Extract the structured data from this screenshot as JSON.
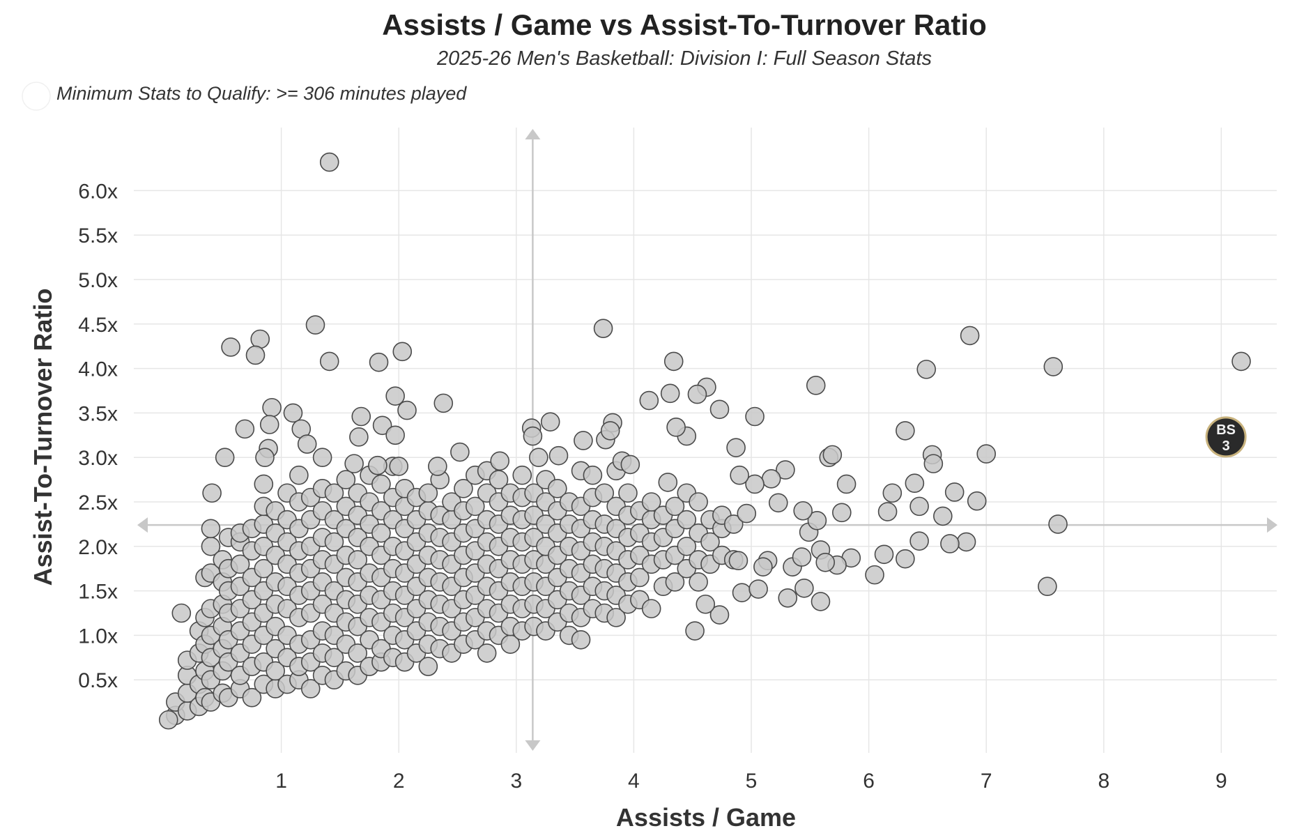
{
  "chart_data": {
    "type": "scatter",
    "title": "Assists / Game vs Assist-To-Turnover Ratio",
    "subtitle": "2025-26 Men's Basketball: Division I: Full Season Stats",
    "note": "Minimum Stats to Qualify: >= 306 minutes played",
    "xlabel": "Assists / Game",
    "ylabel": "Assist-To-Turnover Ratio",
    "xlim": [
      0,
      9.5
    ],
    "ylim": [
      -0.2,
      6.6
    ],
    "x_ticks": [
      {
        "v": 1,
        "label": "1"
      },
      {
        "v": 2,
        "label": "2"
      },
      {
        "v": 3,
        "label": "3"
      },
      {
        "v": 4,
        "label": "4"
      },
      {
        "v": 5,
        "label": "5"
      },
      {
        "v": 6,
        "label": "6"
      },
      {
        "v": 7,
        "label": "7"
      },
      {
        "v": 8,
        "label": "8"
      },
      {
        "v": 9,
        "label": "9"
      }
    ],
    "y_ticks": [
      {
        "v": 0.5,
        "label": "0.5x"
      },
      {
        "v": 1.0,
        "label": "1.0x"
      },
      {
        "v": 1.5,
        "label": "1.5x"
      },
      {
        "v": 2.0,
        "label": "2.0x"
      },
      {
        "v": 2.5,
        "label": "2.5x"
      },
      {
        "v": 3.0,
        "label": "3.0x"
      },
      {
        "v": 3.5,
        "label": "3.5x"
      },
      {
        "v": 4.0,
        "label": "4.0x"
      },
      {
        "v": 4.5,
        "label": "4.5x"
      },
      {
        "v": 5.0,
        "label": "5.0x"
      },
      {
        "v": 5.5,
        "label": "5.5x"
      },
      {
        "v": 6.0,
        "label": "6.0x"
      }
    ],
    "grid": true,
    "crosshair": {
      "x": 3.14,
      "y": 2.24
    },
    "highlight": {
      "x": 9.04,
      "y": 3.23,
      "label_line1": "BS",
      "label_line2": "3",
      "fill": "#2a2a2a",
      "stroke": "#c9b37e"
    },
    "cloud_columns": [
      {
        "x": 0.1,
        "y": [
          0.1,
          0.25
        ]
      },
      {
        "x": 0.2,
        "y": [
          0.15,
          0.35,
          0.55,
          0.72
        ]
      },
      {
        "x": 0.3,
        "y": [
          0.2,
          0.45,
          0.8,
          1.05
        ]
      },
      {
        "x": 0.35,
        "y": [
          0.3,
          0.6,
          0.9,
          1.2,
          1.65
        ]
      },
      {
        "x": 0.4,
        "y": [
          0.25,
          0.5,
          0.75,
          1.0,
          1.3,
          1.7,
          2.0,
          2.2
        ]
      },
      {
        "x": 0.5,
        "y": [
          0.35,
          0.6,
          0.85,
          1.1,
          1.35,
          1.6,
          1.85
        ]
      },
      {
        "x": 0.55,
        "y": [
          0.3,
          0.7,
          0.95,
          1.25,
          1.5,
          1.75,
          2.1
        ]
      },
      {
        "x": 0.65,
        "y": [
          0.4,
          0.55,
          0.8,
          1.05,
          1.3,
          1.55,
          1.8,
          2.05,
          2.15
        ]
      },
      {
        "x": 0.75,
        "y": [
          0.3,
          0.65,
          0.9,
          1.15,
          1.4,
          1.65,
          1.95,
          2.2
        ]
      },
      {
        "x": 0.85,
        "y": [
          0.45,
          0.7,
          1.0,
          1.25,
          1.5,
          1.75,
          2.0,
          2.25,
          2.45,
          2.7
        ]
      },
      {
        "x": 0.95,
        "y": [
          0.4,
          0.6,
          0.85,
          1.1,
          1.35,
          1.6,
          1.9,
          2.15,
          2.4
        ]
      },
      {
        "x": 1.05,
        "y": [
          0.45,
          0.75,
          1.0,
          1.3,
          1.55,
          1.8,
          2.05,
          2.3,
          2.6
        ]
      },
      {
        "x": 1.15,
        "y": [
          0.5,
          0.65,
          0.9,
          1.2,
          1.45,
          1.7,
          1.95,
          2.2,
          2.5,
          2.8
        ]
      },
      {
        "x": 1.25,
        "y": [
          0.4,
          0.7,
          0.95,
          1.25,
          1.5,
          1.75,
          2.0,
          2.3,
          2.55
        ]
      },
      {
        "x": 1.35,
        "y": [
          0.55,
          0.8,
          1.05,
          1.35,
          1.6,
          1.85,
          2.1,
          2.4,
          2.65
        ]
      },
      {
        "x": 1.45,
        "y": [
          0.5,
          0.75,
          1.0,
          1.25,
          1.5,
          1.8,
          2.05,
          2.3,
          2.6
        ]
      },
      {
        "x": 1.55,
        "y": [
          0.6,
          0.9,
          1.15,
          1.4,
          1.65,
          1.9,
          2.2,
          2.45,
          2.75
        ]
      },
      {
        "x": 1.65,
        "y": [
          0.55,
          0.8,
          1.1,
          1.35,
          1.6,
          1.85,
          2.1,
          2.35,
          2.6
        ]
      },
      {
        "x": 1.75,
        "y": [
          0.65,
          0.95,
          1.2,
          1.45,
          1.7,
          2.0,
          2.25,
          2.5,
          2.8
        ]
      },
      {
        "x": 1.85,
        "y": [
          0.7,
          0.85,
          1.15,
          1.4,
          1.65,
          1.9,
          2.15,
          2.4,
          2.7
        ]
      },
      {
        "x": 1.95,
        "y": [
          0.75,
          1.0,
          1.25,
          1.5,
          1.75,
          2.0,
          2.3,
          2.55,
          2.9
        ]
      },
      {
        "x": 2.05,
        "y": [
          0.7,
          0.95,
          1.2,
          1.45,
          1.7,
          1.95,
          2.2,
          2.45,
          2.65
        ]
      },
      {
        "x": 2.15,
        "y": [
          0.8,
          1.05,
          1.3,
          1.55,
          1.8,
          2.05,
          2.3,
          2.55
        ]
      },
      {
        "x": 2.25,
        "y": [
          0.65,
          0.9,
          1.15,
          1.4,
          1.65,
          1.9,
          2.15,
          2.4,
          2.6
        ]
      },
      {
        "x": 2.35,
        "y": [
          0.85,
          1.1,
          1.35,
          1.6,
          1.85,
          2.1,
          2.35,
          2.75
        ]
      },
      {
        "x": 2.45,
        "y": [
          0.8,
          1.05,
          1.3,
          1.55,
          1.8,
          2.05,
          2.3,
          2.5
        ]
      },
      {
        "x": 2.55,
        "y": [
          0.9,
          1.15,
          1.4,
          1.65,
          1.9,
          2.15,
          2.4,
          2.65
        ]
      },
      {
        "x": 2.65,
        "y": [
          0.95,
          1.2,
          1.45,
          1.7,
          1.95,
          2.2,
          2.45,
          2.8
        ]
      },
      {
        "x": 2.75,
        "y": [
          0.8,
          1.05,
          1.3,
          1.55,
          1.8,
          2.05,
          2.3,
          2.6,
          2.85
        ]
      },
      {
        "x": 2.85,
        "y": [
          1.0,
          1.25,
          1.5,
          1.75,
          2.0,
          2.25,
          2.5,
          2.75
        ]
      },
      {
        "x": 2.95,
        "y": [
          0.9,
          1.1,
          1.35,
          1.6,
          1.85,
          2.1,
          2.35,
          2.6
        ]
      },
      {
        "x": 3.05,
        "y": [
          1.05,
          1.3,
          1.55,
          1.8,
          2.05,
          2.3,
          2.55,
          2.8
        ]
      },
      {
        "x": 3.15,
        "y": [
          1.1,
          1.35,
          1.6,
          1.85,
          2.1,
          2.35,
          2.6
        ]
      },
      {
        "x": 3.25,
        "y": [
          1.05,
          1.3,
          1.55,
          1.8,
          2.0,
          2.25,
          2.5,
          2.75
        ]
      },
      {
        "x": 3.35,
        "y": [
          1.15,
          1.4,
          1.65,
          1.9,
          2.15,
          2.4,
          2.65
        ]
      },
      {
        "x": 3.45,
        "y": [
          1.0,
          1.25,
          1.5,
          1.75,
          2.0,
          2.25,
          2.5
        ]
      },
      {
        "x": 3.55,
        "y": [
          0.95,
          1.2,
          1.45,
          1.7,
          1.95,
          2.2,
          2.45,
          2.85
        ]
      },
      {
        "x": 3.65,
        "y": [
          1.3,
          1.55,
          1.8,
          2.05,
          2.3,
          2.55,
          2.8
        ]
      },
      {
        "x": 3.75,
        "y": [
          1.25,
          1.5,
          1.75,
          2.0,
          2.25,
          2.6
        ]
      },
      {
        "x": 3.85,
        "y": [
          1.2,
          1.45,
          1.7,
          1.95,
          2.2,
          2.45,
          2.85
        ]
      },
      {
        "x": 3.95,
        "y": [
          1.35,
          1.6,
          1.85,
          2.1,
          2.35,
          2.6
        ]
      },
      {
        "x": 4.05,
        "y": [
          1.4,
          1.65,
          1.9,
          2.15,
          2.4
        ]
      },
      {
        "x": 4.15,
        "y": [
          1.3,
          1.8,
          2.05,
          2.3,
          2.5
        ]
      },
      {
        "x": 4.25,
        "y": [
          1.55,
          1.85,
          2.1,
          2.35
        ]
      },
      {
        "x": 4.35,
        "y": [
          1.6,
          1.9,
          2.2,
          2.45
        ]
      },
      {
        "x": 4.45,
        "y": [
          1.75,
          2.0,
          2.3,
          2.6
        ]
      },
      {
        "x": 4.55,
        "y": [
          1.6,
          1.85,
          2.15,
          2.5
        ]
      },
      {
        "x": 4.65,
        "y": [
          1.8,
          2.05,
          2.3
        ]
      },
      {
        "x": 4.75,
        "y": [
          1.9,
          2.2,
          2.35
        ]
      },
      {
        "x": 4.85,
        "y": [
          1.85,
          2.25
        ]
      }
    ],
    "points": [
      [
        1.41,
        6.32
      ],
      [
        1.29,
        4.49
      ],
      [
        0.82,
        4.33
      ],
      [
        0.57,
        4.24
      ],
      [
        0.78,
        4.15
      ],
      [
        1.41,
        4.08
      ],
      [
        1.83,
        4.07
      ],
      [
        2.03,
        4.19
      ],
      [
        3.74,
        4.45
      ],
      [
        4.34,
        4.08
      ],
      [
        6.86,
        4.37
      ],
      [
        6.49,
        3.99
      ],
      [
        7.57,
        4.02
      ],
      [
        9.17,
        4.08
      ],
      [
        5.55,
        3.81
      ],
      [
        4.62,
        3.79
      ],
      [
        4.13,
        3.64
      ],
      [
        4.73,
        3.54
      ],
      [
        5.03,
        3.46
      ],
      [
        6.31,
        3.3
      ],
      [
        6.54,
        3.03
      ],
      [
        6.55,
        2.93
      ],
      [
        7.0,
        3.04
      ],
      [
        5.66,
        3.0
      ],
      [
        5.69,
        3.03
      ],
      [
        6.92,
        2.51
      ],
      [
        6.73,
        2.61
      ],
      [
        6.39,
        2.71
      ],
      [
        6.2,
        2.6
      ],
      [
        6.43,
        2.45
      ],
      [
        6.16,
        2.39
      ],
      [
        6.63,
        2.34
      ],
      [
        5.81,
        2.7
      ],
      [
        5.77,
        2.38
      ],
      [
        7.61,
        2.25
      ],
      [
        6.43,
        2.06
      ],
      [
        6.83,
        2.05
      ],
      [
        6.69,
        2.03
      ],
      [
        6.13,
        1.91
      ],
      [
        6.31,
        1.86
      ],
      [
        6.05,
        1.68
      ],
      [
        7.52,
        1.55
      ],
      [
        5.59,
        1.38
      ],
      [
        5.31,
        1.42
      ],
      [
        5.45,
        1.53
      ],
      [
        4.52,
        1.05
      ],
      [
        4.73,
        1.23
      ],
      [
        4.61,
        1.35
      ],
      [
        4.92,
        1.48
      ],
      [
        5.06,
        1.52
      ],
      [
        4.87,
        3.11
      ],
      [
        5.29,
        2.86
      ],
      [
        4.45,
        3.24
      ],
      [
        4.36,
        3.34
      ],
      [
        4.31,
        3.72
      ],
      [
        4.54,
        3.71
      ],
      [
        4.29,
        2.72
      ],
      [
        5.85,
        1.87
      ],
      [
        5.73,
        1.79
      ],
      [
        5.59,
        1.96
      ],
      [
        5.49,
        2.16
      ],
      [
        5.56,
        2.29
      ],
      [
        5.44,
        2.4
      ],
      [
        5.23,
        2.49
      ],
      [
        5.17,
        2.76
      ],
      [
        5.03,
        2.7
      ],
      [
        4.9,
        2.8
      ],
      [
        4.96,
        2.37
      ],
      [
        5.14,
        1.84
      ],
      [
        5.35,
        1.77
      ],
      [
        5.63,
        1.82
      ],
      [
        5.1,
        1.77
      ],
      [
        4.89,
        1.84
      ],
      [
        5.43,
        1.88
      ],
      [
        0.41,
        2.6
      ],
      [
        0.52,
        3.0
      ],
      [
        0.69,
        3.32
      ],
      [
        0.92,
        3.56
      ],
      [
        1.1,
        3.5
      ],
      [
        1.17,
        3.32
      ],
      [
        1.22,
        3.15
      ],
      [
        1.35,
        3.0
      ],
      [
        0.9,
        3.37
      ],
      [
        0.89,
        3.1
      ],
      [
        0.86,
        3.0
      ],
      [
        1.68,
        3.46
      ],
      [
        1.86,
        3.36
      ],
      [
        1.97,
        3.69
      ],
      [
        2.07,
        3.53
      ],
      [
        2.38,
        3.61
      ],
      [
        1.97,
        3.25
      ],
      [
        1.66,
        3.23
      ],
      [
        2.52,
        3.06
      ],
      [
        3.13,
        3.33
      ],
      [
        3.29,
        3.4
      ],
      [
        3.14,
        3.24
      ],
      [
        3.57,
        3.19
      ],
      [
        3.76,
        3.2
      ],
      [
        3.82,
        3.39
      ],
      [
        3.8,
        3.3
      ],
      [
        3.36,
        3.02
      ],
      [
        3.19,
        3.0
      ],
      [
        2.86,
        2.96
      ],
      [
        3.9,
        2.96
      ],
      [
        3.97,
        2.92
      ],
      [
        2.33,
        2.9
      ],
      [
        2.0,
        2.9
      ],
      [
        1.82,
        2.91
      ],
      [
        1.62,
        2.93
      ],
      [
        0.15,
        1.25
      ],
      [
        0.04,
        0.05
      ]
    ]
  }
}
